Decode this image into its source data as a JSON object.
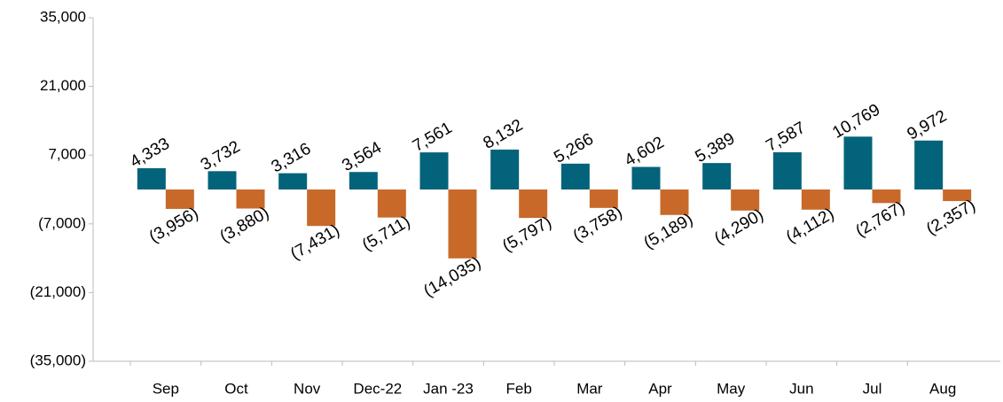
{
  "chart_data": {
    "type": "bar",
    "categories": [
      "Sep",
      "Oct",
      "Nov",
      "Dec-22",
      "Jan -23",
      "Feb",
      "Mar",
      "Apr",
      "May",
      "Jun",
      "Jul",
      "Aug"
    ],
    "series": [
      {
        "color": "#03637a",
        "values": [
          4333,
          3732,
          3316,
          3564,
          7561,
          8132,
          5266,
          4602,
          5389,
          7587,
          10769,
          9972
        ],
        "value_labels": [
          "4,333",
          "3,732",
          "3,316",
          "3,564",
          "7,561",
          "8,132",
          "5,266",
          "4,602",
          "5,389",
          "7,587",
          "10,769",
          "9,972"
        ]
      },
      {
        "color": "#c8692a",
        "values": [
          -3956,
          -3880,
          -7431,
          -5711,
          -14035,
          -5797,
          -3758,
          -5189,
          -4290,
          -4112,
          -2767,
          -2357
        ],
        "value_labels": [
          "(3,956)",
          "(3,880)",
          "(7,431)",
          "(5,711)",
          "(14,035)",
          "(5,797)",
          "(3,758)",
          "(5,189)",
          "(4,290)",
          "(4,112)",
          "(2,767)",
          "(2,357)"
        ]
      }
    ],
    "ylim": [
      -35000,
      35000
    ],
    "yticks": [
      {
        "value": -35000,
        "label": "(35,000)"
      },
      {
        "value": -21000,
        "label": "(21,000)"
      },
      {
        "value": -7000,
        "label": "(7,000)"
      },
      {
        "value": 7000,
        "label": "7,000"
      },
      {
        "value": 21000,
        "label": "21,000"
      },
      {
        "value": 35000,
        "label": "35,000"
      }
    ]
  }
}
